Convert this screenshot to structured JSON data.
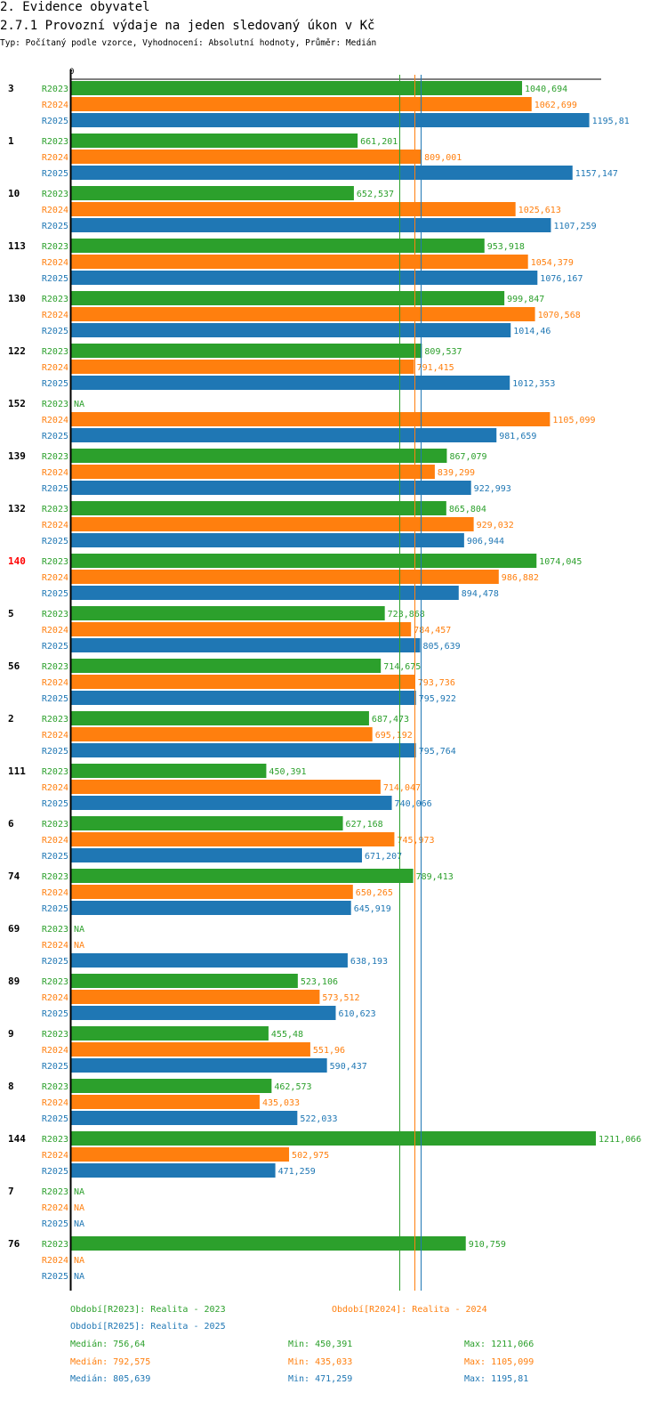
{
  "header": {
    "section": "2. Evidence obyvatel",
    "title": "2.7.1 Provozní výdaje na jeden sledovaný úkon v Kč",
    "subtitle": "Typ: Počítaný podle vzorce, Vyhodnocení: Absolutní hodnoty, Průměr: Medián"
  },
  "colors": {
    "R2023": "#2ca02c",
    "R2024": "#ff7f0e",
    "R2025": "#1f77b4",
    "highlight": "#ff0000",
    "axis": "#000000"
  },
  "chart_data": {
    "type": "bar",
    "orientation": "horizontal",
    "title": "2.7.1 Provozní výdaje na jeden sledovaný úkon v Kč",
    "xlim": [
      0,
      1211.066
    ],
    "axis_zero_label": "0",
    "highlighted_category": "140",
    "series_names": [
      "R2023",
      "R2024",
      "R2025"
    ],
    "categories": [
      "3",
      "1",
      "10",
      "113",
      "130",
      "122",
      "152",
      "139",
      "132",
      "140",
      "5",
      "56",
      "2",
      "111",
      "6",
      "74",
      "69",
      "89",
      "9",
      "8",
      "144",
      "7",
      "76"
    ],
    "series": [
      {
        "name": "R2023",
        "values": [
          1040.694,
          661.201,
          652.537,
          953.918,
          999.847,
          809.537,
          null,
          867.079,
          865.804,
          1074.045,
          723.868,
          714.675,
          687.473,
          450.391,
          627.168,
          789.413,
          null,
          523.106,
          455.48,
          462.573,
          1211.066,
          null,
          910.759
        ],
        "labels": [
          "1040,694",
          "661,201",
          "652,537",
          "953,918",
          "999,847",
          "809,537",
          "NA",
          "867,079",
          "865,804",
          "1074,045",
          "723,868",
          "714,675",
          "687,473",
          "450,391",
          "627,168",
          "789,413",
          "NA",
          "523,106",
          "455,48",
          "462,573",
          "1211,066",
          "NA",
          "910,759"
        ]
      },
      {
        "name": "R2024",
        "values": [
          1062.699,
          809.001,
          1025.613,
          1054.379,
          1070.568,
          791.415,
          1105.099,
          839.299,
          929.032,
          986.882,
          784.457,
          793.736,
          695.192,
          714.047,
          745.973,
          650.265,
          null,
          573.512,
          551.96,
          435.033,
          502.975,
          null,
          null
        ],
        "labels": [
          "1062,699",
          "809,001",
          "1025,613",
          "1054,379",
          "1070,568",
          "791,415",
          "1105,099",
          "839,299",
          "929,032",
          "986,882",
          "784,457",
          "793,736",
          "695,192",
          "714,047",
          "745,973",
          "650,265",
          "NA",
          "573,512",
          "551,96",
          "435,033",
          "502,975",
          "NA",
          "NA"
        ]
      },
      {
        "name": "R2025",
        "values": [
          1195.81,
          1157.147,
          1107.259,
          1076.167,
          1014.46,
          1012.353,
          981.659,
          922.993,
          906.944,
          894.478,
          805.639,
          795.922,
          795.764,
          740.066,
          671.207,
          645.919,
          638.193,
          610.623,
          590.437,
          522.033,
          471.259,
          null,
          null
        ],
        "labels": [
          "1195,81",
          "1157,147",
          "1107,259",
          "1076,167",
          "1014,46",
          "1012,353",
          "981,659",
          "922,993",
          "906,944",
          "894,478",
          "805,639",
          "795,922",
          "795,764",
          "740,066",
          "671,207",
          "645,919",
          "638,193",
          "610,623",
          "590,437",
          "522,033",
          "471,259",
          "NA",
          "NA"
        ]
      }
    ],
    "medians": [
      {
        "series": "R2023",
        "value": 756.64
      },
      {
        "series": "R2024",
        "value": 792.575
      },
      {
        "series": "R2025",
        "value": 805.639
      }
    ]
  },
  "legend": {
    "periods": [
      {
        "series": "R2023",
        "text": "Období[R2023]: Realita - 2023"
      },
      {
        "series": "R2024",
        "text": "Období[R2024]: Realita - 2024"
      },
      {
        "series": "R2025",
        "text": "Období[R2025]: Realita - 2025"
      }
    ],
    "stats": [
      {
        "series": "R2023",
        "median": "Medián: 756,64",
        "min": "Min: 450,391",
        "max": "Max: 1211,066"
      },
      {
        "series": "R2024",
        "median": "Medián: 792,575",
        "min": "Min: 435,033",
        "max": "Max: 1105,099"
      },
      {
        "series": "R2025",
        "median": "Medián: 805,639",
        "min": "Min: 471,259",
        "max": "Max: 1195,81"
      }
    ]
  }
}
